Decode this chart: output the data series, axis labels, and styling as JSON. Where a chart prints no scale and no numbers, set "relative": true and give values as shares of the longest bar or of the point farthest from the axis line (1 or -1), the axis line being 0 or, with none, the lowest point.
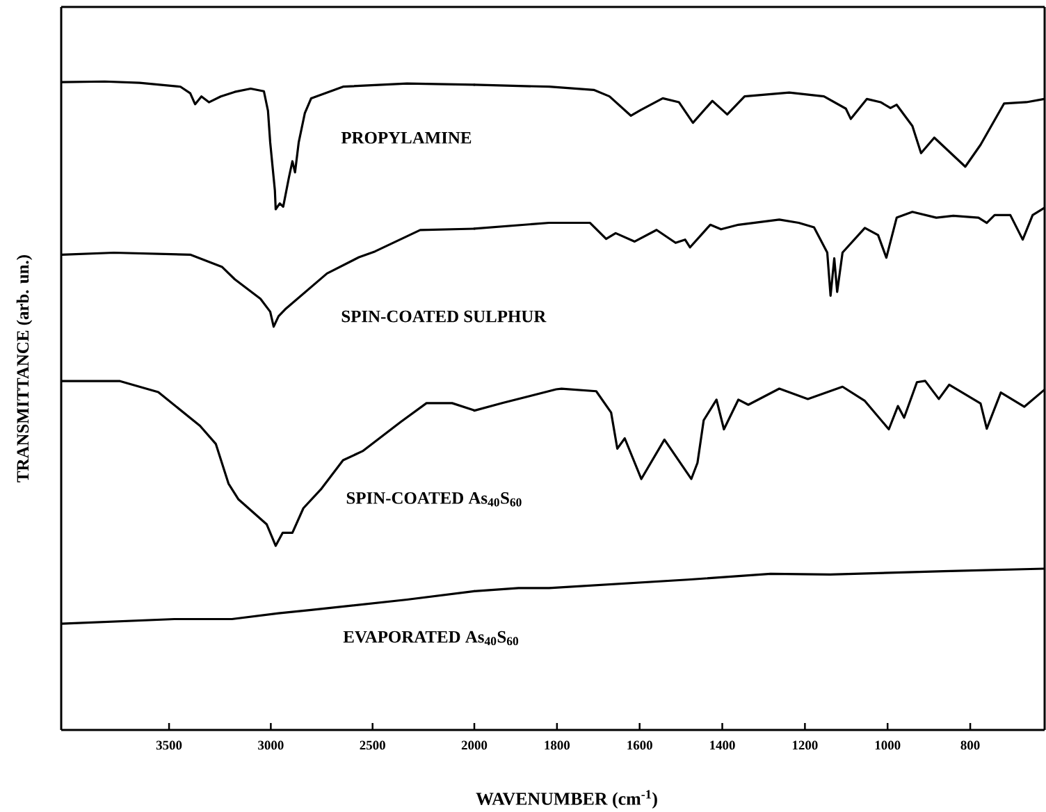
{
  "chart_data": [
    {
      "type": "line",
      "relative": true,
      "ylabel": "TRANSMITTANCE (arb. un.)",
      "xlim": [
        4030,
        2000
      ],
      "xticks": [
        3500,
        3000,
        2500,
        2000
      ],
      "series": [
        {
          "name": "PROPYLAMINE",
          "color": "#000000",
          "x": [
            4027,
            3816,
            3645,
            3444,
            3396,
            3372,
            3341,
            3304,
            3246,
            3177,
            3099,
            3034,
            3014,
            3003,
            2980,
            2976,
            2956,
            2939,
            2911,
            2894,
            2881,
            2863,
            2833,
            2802,
            2645,
            2331,
            2000
          ],
          "values": [
            0.999,
            1.0,
            0.998,
            0.992,
            0.982,
            0.965,
            0.977,
            0.968,
            0.977,
            0.984,
            0.989,
            0.985,
            0.955,
            0.906,
            0.832,
            0.803,
            0.812,
            0.807,
            0.852,
            0.877,
            0.86,
            0.906,
            0.951,
            0.974,
            0.992,
            0.997,
            0.995
          ]
        },
        {
          "name": "SPIN-COATED SULPHUR",
          "color": "#000000",
          "x": [
            4027,
            3771,
            3396,
            3239,
            3177,
            3051,
            3003,
            2986,
            2962,
            2925,
            2724,
            2567,
            2488,
            2266,
            2000
          ],
          "values": [
            0.733,
            0.736,
            0.733,
            0.714,
            0.695,
            0.665,
            0.645,
            0.622,
            0.638,
            0.65,
            0.704,
            0.729,
            0.738,
            0.771,
            0.773
          ]
        },
        {
          "name": "SPIN-COATED As$_{40}$S$_{60}$",
          "color": "#000000",
          "x": [
            4027,
            3741,
            3553,
            3348,
            3270,
            3208,
            3160,
            3020,
            2976,
            2942,
            2894,
            2840,
            2754,
            2645,
            2549,
            2362,
            2235,
            2109,
            2000
          ],
          "values": [
            0.538,
            0.538,
            0.521,
            0.469,
            0.441,
            0.38,
            0.356,
            0.317,
            0.284,
            0.304,
            0.304,
            0.342,
            0.371,
            0.416,
            0.43,
            0.475,
            0.504,
            0.504,
            0.493
          ]
        },
        {
          "name": "EVAPORATED As$_{40}$S$_{60}$",
          "color": "#000000",
          "x": [
            4027,
            3474,
            3191,
            2962,
            2802,
            2331,
            2000
          ],
          "values": [
            0.164,
            0.171,
            0.171,
            0.18,
            0.185,
            0.201,
            0.214
          ]
        }
      ]
    },
    {
      "type": "line",
      "relative": true,
      "xlabel": "WAVENUMBER (cm$^{-1}$)",
      "xlim": [
        2000,
        620
      ],
      "xticks": [
        1800,
        1600,
        1400,
        1200,
        1000,
        800
      ],
      "series": [
        {
          "color": "#000000",
          "x": [
            2000,
            1819,
            1711,
            1673,
            1621,
            1597,
            1544,
            1505,
            1471,
            1424,
            1388,
            1346,
            1238,
            1154,
            1101,
            1089,
            1050,
            1017,
            993,
            978,
            940,
            919,
            887,
            812,
            775,
            718,
            664,
            621
          ],
          "values": [
            1.0,
            0.997,
            0.992,
            0.982,
            0.952,
            0.961,
            0.979,
            0.973,
            0.941,
            0.975,
            0.954,
            0.982,
            0.988,
            0.982,
            0.963,
            0.947,
            0.978,
            0.973,
            0.964,
            0.969,
            0.936,
            0.894,
            0.918,
            0.873,
            0.907,
            0.971,
            0.973,
            0.978
          ]
        },
        {
          "color": "#000000",
          "x": [
            2000,
            1819,
            1720,
            1681,
            1658,
            1612,
            1559,
            1513,
            1490,
            1478,
            1429,
            1403,
            1361,
            1262,
            1215,
            1178,
            1146,
            1138,
            1129,
            1122,
            1109,
            1055,
            1023,
            1003,
            978,
            940,
            882,
            841,
            780,
            760,
            741,
            703,
            673,
            649,
            621
          ],
          "values": [
            0.777,
            0.786,
            0.786,
            0.761,
            0.77,
            0.757,
            0.775,
            0.755,
            0.76,
            0.748,
            0.783,
            0.776,
            0.783,
            0.791,
            0.786,
            0.779,
            0.74,
            0.673,
            0.731,
            0.679,
            0.74,
            0.778,
            0.767,
            0.732,
            0.794,
            0.803,
            0.794,
            0.797,
            0.794,
            0.786,
            0.798,
            0.798,
            0.76,
            0.798,
            0.809
          ]
        },
        {
          "color": "#000000",
          "x": [
            2000,
            1931,
            1802,
            1789,
            1705,
            1669,
            1654,
            1636,
            1596,
            1540,
            1475,
            1460,
            1445,
            1414,
            1396,
            1361,
            1337,
            1262,
            1193,
            1109,
            1055,
            997,
            975,
            960,
            929,
            909,
            876,
            851,
            775,
            760,
            726,
            669,
            621
          ],
          "values": [
            0.495,
            0.507,
            0.528,
            0.529,
            0.525,
            0.492,
            0.436,
            0.452,
            0.389,
            0.45,
            0.389,
            0.414,
            0.48,
            0.512,
            0.466,
            0.512,
            0.504,
            0.529,
            0.513,
            0.532,
            0.51,
            0.466,
            0.502,
            0.484,
            0.539,
            0.541,
            0.513,
            0.535,
            0.506,
            0.467,
            0.523,
            0.501,
            0.527
          ]
        },
        {
          "color": "#000000",
          "x": [
            2000,
            1893,
            1819,
            1483,
            1283,
            1139,
            864,
            621
          ],
          "values": [
            0.215,
            0.22,
            0.22,
            0.233,
            0.242,
            0.241,
            0.246,
            0.25
          ]
        }
      ]
    }
  ]
}
